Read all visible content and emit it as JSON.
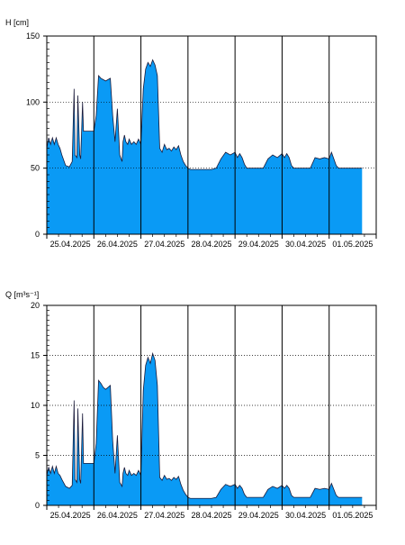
{
  "colors": {
    "fill": "#0a9af5",
    "line": "#1a1a3a",
    "axis": "#000000",
    "grid": "#000000",
    "background": "#ffffff"
  },
  "chart_data": [
    {
      "type": "area",
      "ylabel": "H [cm]",
      "xlabel": "",
      "ylim": [
        0,
        150
      ],
      "yticks": [
        0,
        50,
        100,
        150
      ],
      "grid": "horizontal dotted at labeled ticks; vertical solid at day boundaries",
      "x_start": "25.04.2025",
      "x_end": "02.05.2025",
      "x_tick_labels": [
        "25.04.2025",
        "26.04.2025",
        "27.04.2025",
        "28.04.2025",
        "29.04.2025",
        "30.04.2025",
        "01.05.2025"
      ],
      "series": [
        {
          "x": [
            0.0,
            0.04,
            0.08,
            0.12,
            0.16,
            0.2,
            0.24,
            0.28,
            0.32,
            0.4,
            0.48,
            0.54,
            0.58,
            0.6,
            0.64,
            0.66,
            0.7,
            0.72,
            0.76,
            0.78,
            0.82,
            0.84,
            0.9,
            0.95,
            1.0,
            1.05,
            1.1,
            1.15,
            1.2,
            1.25,
            1.3,
            1.35,
            1.4,
            1.45,
            1.5,
            1.55,
            1.6,
            1.62,
            1.65,
            1.68,
            1.72,
            1.75,
            1.8,
            1.85,
            1.9,
            1.95,
            2.0,
            2.05,
            2.1,
            2.15,
            2.2,
            2.25,
            2.3,
            2.35,
            2.4,
            2.45,
            2.5,
            2.55,
            2.6,
            2.65,
            2.7,
            2.75,
            2.8,
            2.85,
            2.9,
            2.95,
            3.0,
            3.05,
            3.1,
            3.15,
            3.2,
            3.25,
            3.3,
            3.4,
            3.5,
            3.6,
            3.7,
            3.8,
            3.9,
            4.0,
            4.05,
            4.1,
            4.15,
            4.2,
            4.25,
            4.3,
            4.35,
            4.4,
            4.5,
            4.6,
            4.7,
            4.8,
            4.9,
            5.0,
            5.05,
            5.1,
            5.15,
            5.2,
            5.25,
            5.3,
            5.35,
            5.4,
            5.5,
            5.6,
            5.7,
            5.8,
            5.9,
            6.0,
            6.05,
            6.1,
            6.15,
            6.2,
            6.25,
            6.3,
            6.35,
            6.4,
            6.5,
            6.6,
            6.7
          ],
          "y": [
            65,
            73,
            68,
            73,
            68,
            73,
            68,
            65,
            60,
            52,
            51,
            55,
            110,
            60,
            58,
            105,
            60,
            57,
            100,
            78,
            78,
            78,
            78,
            78,
            78,
            90,
            120,
            118,
            117,
            116,
            117,
            118,
            90,
            70,
            95,
            60,
            55,
            70,
            75,
            70,
            68,
            72,
            68,
            70,
            68,
            72,
            68,
            110,
            125,
            130,
            127,
            132,
            128,
            120,
            65,
            62,
            68,
            64,
            65,
            63,
            66,
            64,
            67,
            60,
            55,
            52,
            50,
            49,
            49,
            49,
            49,
            49,
            49,
            49,
            49,
            50,
            57,
            62,
            60,
            62,
            58,
            61,
            58,
            53,
            50,
            50,
            50,
            50,
            50,
            50,
            57,
            60,
            58,
            61,
            58,
            61,
            58,
            52,
            50,
            50,
            50,
            50,
            50,
            50,
            58,
            57,
            58,
            57,
            62,
            57,
            52,
            50,
            50,
            50,
            50,
            50,
            50,
            50,
            50
          ]
        }
      ]
    },
    {
      "type": "area",
      "ylabel": "Q [m³s⁻¹]",
      "xlabel": "",
      "ylim": [
        0,
        20
      ],
      "yticks": [
        0,
        5,
        10,
        15,
        20
      ],
      "grid": "horizontal dotted at labeled ticks; vertical solid at day boundaries",
      "x_start": "25.04.2025",
      "x_end": "02.05.2025",
      "x_tick_labels": [
        "25.04.2025",
        "26.04.2025",
        "27.04.2025",
        "28.04.2025",
        "29.04.2025",
        "30.04.2025",
        "01.05.2025"
      ],
      "series": [
        {
          "x": [
            0.0,
            0.04,
            0.08,
            0.12,
            0.16,
            0.2,
            0.24,
            0.28,
            0.32,
            0.4,
            0.48,
            0.54,
            0.58,
            0.6,
            0.64,
            0.66,
            0.7,
            0.72,
            0.76,
            0.78,
            0.82,
            0.84,
            0.9,
            0.95,
            1.0,
            1.05,
            1.1,
            1.15,
            1.2,
            1.25,
            1.3,
            1.35,
            1.4,
            1.45,
            1.5,
            1.55,
            1.6,
            1.62,
            1.65,
            1.68,
            1.72,
            1.75,
            1.8,
            1.85,
            1.9,
            1.95,
            2.0,
            2.05,
            2.1,
            2.15,
            2.2,
            2.25,
            2.3,
            2.35,
            2.4,
            2.45,
            2.5,
            2.55,
            2.6,
            2.65,
            2.7,
            2.75,
            2.8,
            2.85,
            2.9,
            2.95,
            3.0,
            3.05,
            3.1,
            3.15,
            3.2,
            3.25,
            3.3,
            3.4,
            3.5,
            3.6,
            3.7,
            3.8,
            3.9,
            4.0,
            4.05,
            4.1,
            4.15,
            4.2,
            4.25,
            4.3,
            4.35,
            4.4,
            4.5,
            4.6,
            4.7,
            4.8,
            4.9,
            5.0,
            5.05,
            5.1,
            5.15,
            5.2,
            5.25,
            5.3,
            5.35,
            5.4,
            5.5,
            5.6,
            5.7,
            5.8,
            5.9,
            6.0,
            6.05,
            6.1,
            6.15,
            6.2,
            6.25,
            6.3,
            6.35,
            6.4,
            6.5,
            6.6,
            6.7
          ],
          "y": [
            3.0,
            3.8,
            3.2,
            3.9,
            3.2,
            3.9,
            3.2,
            3.0,
            2.6,
            1.9,
            1.7,
            2.0,
            10.5,
            2.6,
            2.3,
            9.7,
            2.6,
            2.2,
            9.2,
            4.2,
            4.2,
            4.2,
            4.2,
            4.2,
            4.2,
            6.2,
            12.5,
            12.2,
            11.8,
            11.6,
            11.8,
            12.0,
            6.5,
            3.2,
            7.0,
            2.3,
            1.9,
            3.2,
            3.8,
            3.2,
            3.0,
            3.5,
            3.0,
            3.2,
            3.0,
            3.5,
            3.0,
            11.5,
            14.0,
            14.8,
            14.2,
            15.2,
            14.5,
            12.0,
            2.8,
            2.5,
            3.0,
            2.6,
            2.7,
            2.5,
            2.8,
            2.6,
            2.9,
            2.1,
            1.5,
            1.1,
            0.8,
            0.7,
            0.7,
            0.7,
            0.7,
            0.7,
            0.7,
            0.7,
            0.7,
            0.8,
            1.6,
            2.1,
            1.9,
            2.1,
            1.7,
            2.0,
            1.7,
            1.1,
            0.8,
            0.8,
            0.8,
            0.8,
            0.8,
            0.8,
            1.6,
            1.9,
            1.7,
            2.0,
            1.7,
            2.0,
            1.7,
            1.0,
            0.8,
            0.8,
            0.8,
            0.8,
            0.8,
            0.8,
            1.7,
            1.6,
            1.7,
            1.6,
            2.2,
            1.6,
            1.0,
            0.8,
            0.8,
            0.8,
            0.8,
            0.8,
            0.8,
            0.8,
            0.8
          ]
        }
      ]
    }
  ]
}
